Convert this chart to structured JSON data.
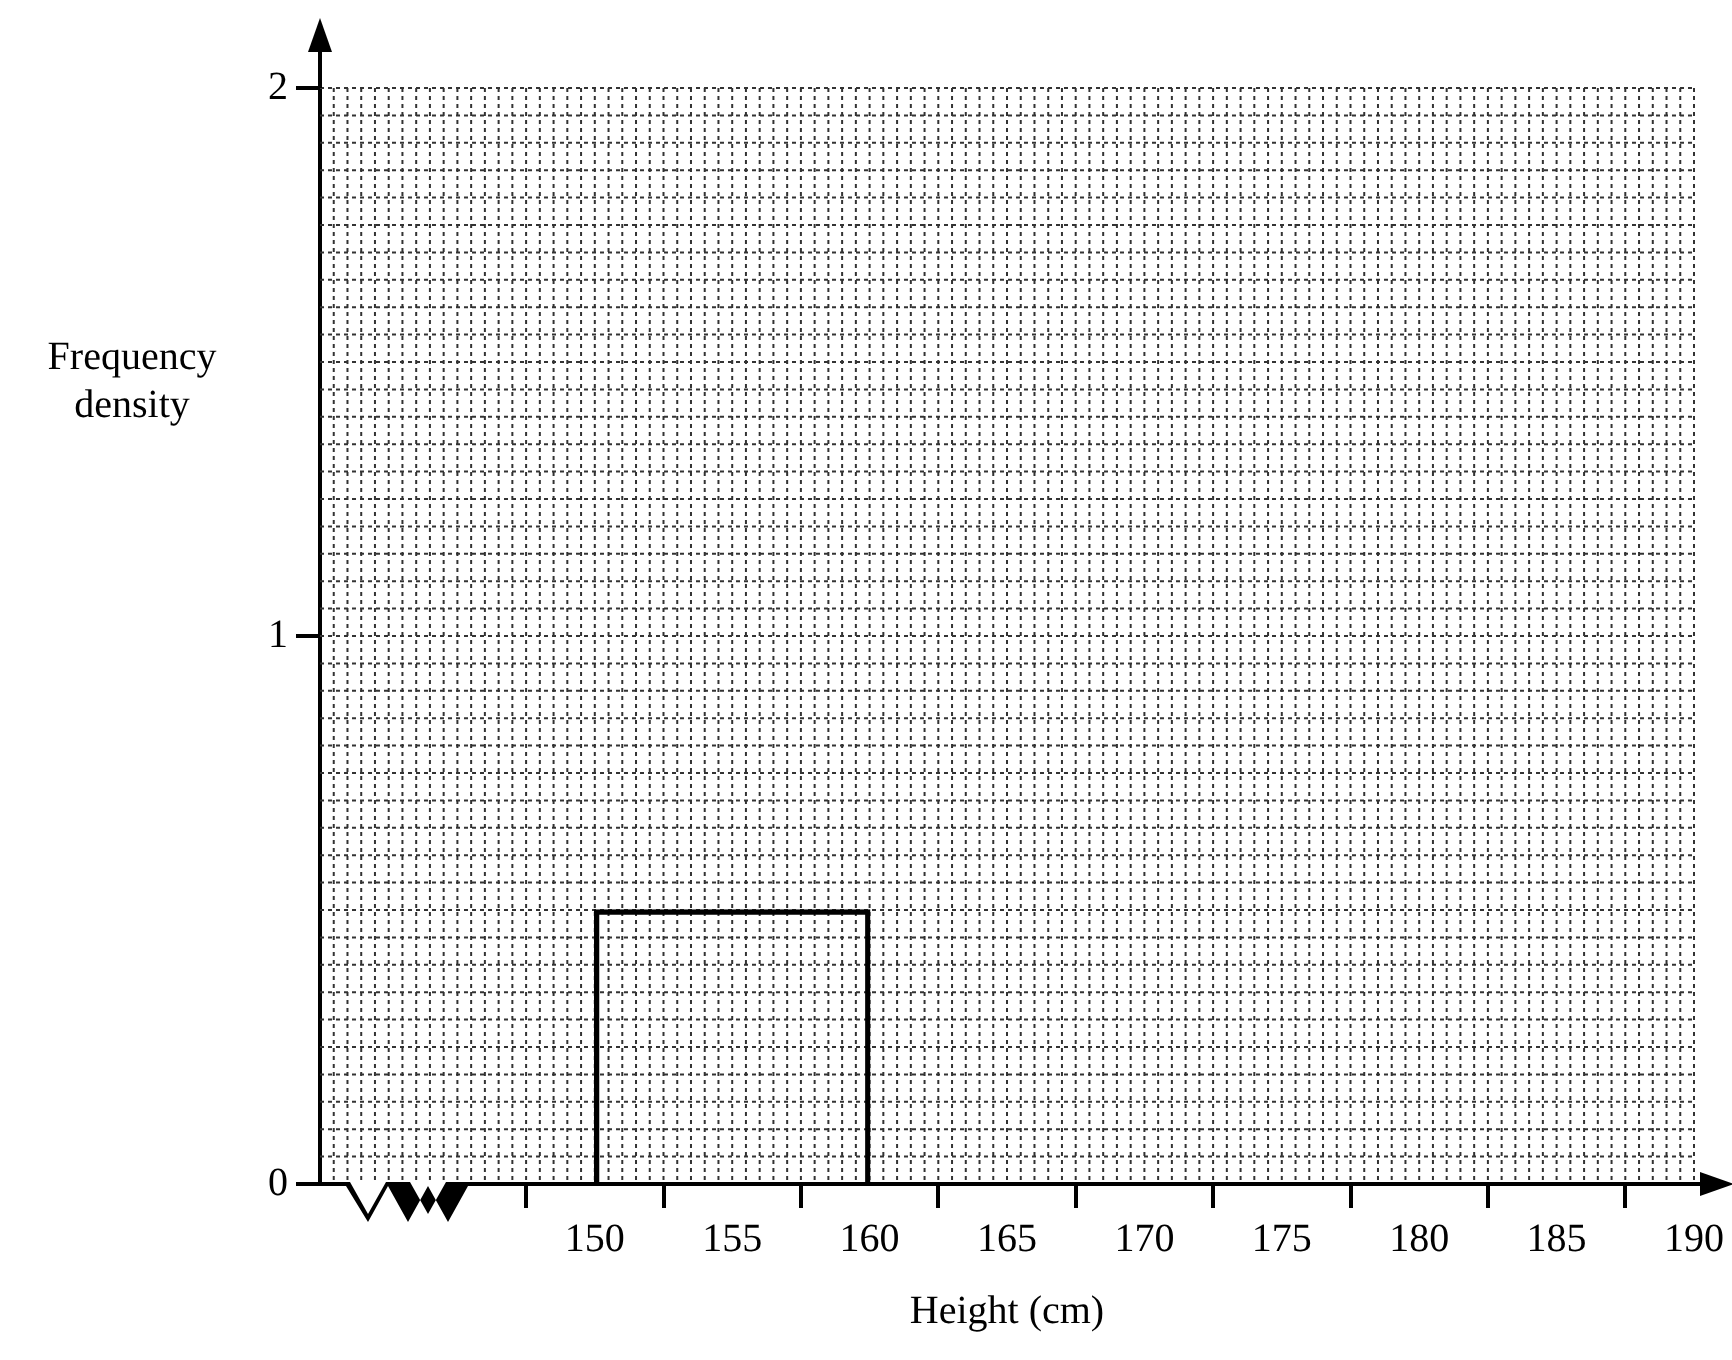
{
  "chart_data": {
    "type": "histogram",
    "xlabel": "Height (cm)",
    "ylabel": "Frequency density",
    "bins": [
      150,
      160
    ],
    "values": [
      0.5
    ],
    "color": "#000000",
    "xlim": [
      140,
      190
    ],
    "xticks": [
      150,
      155,
      160,
      165,
      170,
      175,
      180,
      185,
      190
    ],
    "ylim": [
      0,
      2
    ],
    "yticks": [
      0,
      1,
      2
    ],
    "grid": true
  }
}
